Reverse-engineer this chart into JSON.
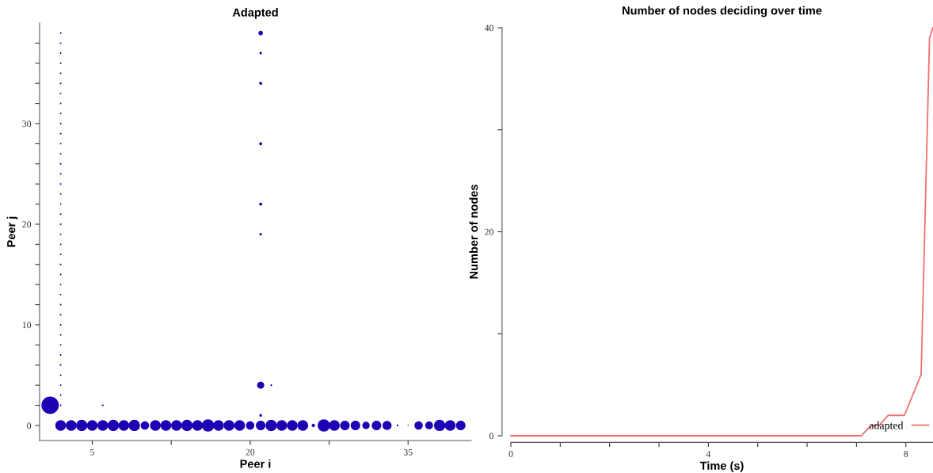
{
  "chart_data": [
    {
      "type": "bubble",
      "title": "Adapted",
      "xlabel": "Peer i",
      "ylabel": "Peer j",
      "xlim": [
        0,
        41
      ],
      "ylim": [
        -1.5,
        40
      ],
      "xticks": [
        5,
        {
          "value": 12.5,
          "label": null
        },
        20,
        {
          "value": 27.5,
          "label": null
        },
        35
      ],
      "yticks": [
        0,
        {
          "value": 2,
          "label": null
        },
        {
          "value": 4,
          "label": null
        },
        {
          "value": 6,
          "label": null
        },
        {
          "value": 8,
          "label": null
        },
        10,
        {
          "value": 12,
          "label": null
        },
        {
          "value": 14,
          "label": null
        },
        {
          "value": 16,
          "label": null
        },
        {
          "value": 18,
          "label": null
        },
        20,
        {
          "value": 22,
          "label": null
        },
        {
          "value": 24,
          "label": null
        },
        {
          "value": 26,
          "label": null
        },
        {
          "value": 28,
          "label": null
        },
        30,
        {
          "value": 32,
          "label": null
        },
        {
          "value": 34,
          "label": null
        },
        {
          "value": 36,
          "label": null
        },
        {
          "value": 38,
          "label": null
        }
      ],
      "grid": false,
      "legend": false,
      "series": [
        {
          "color": "#1c00b4",
          "x": [
            2,
            3,
            4,
            5,
            6,
            7,
            8,
            9,
            10,
            11,
            12,
            13,
            14,
            15,
            16,
            17,
            18,
            19,
            20,
            21,
            22,
            23,
            24,
            25,
            26,
            27,
            28,
            29,
            30,
            31,
            32,
            33,
            34,
            35,
            36,
            37,
            38,
            39,
            40,
            1,
            21,
            21,
            21,
            21,
            21,
            21,
            21,
            21,
            22,
            6,
            2,
            2,
            2,
            2,
            2,
            2,
            2,
            2,
            2,
            2,
            2,
            2,
            2,
            2,
            2,
            2,
            2,
            2,
            2,
            2,
            2,
            2,
            2,
            2,
            2,
            2,
            2,
            2,
            2,
            2,
            2,
            2,
            2,
            2,
            2,
            2,
            2,
            2
          ],
          "values": [
            0,
            0,
            0,
            0,
            0,
            0,
            0,
            0,
            0,
            0,
            0,
            0,
            0,
            0,
            0,
            0,
            0,
            0,
            0,
            0,
            0,
            0,
            0,
            0,
            0,
            0,
            0,
            0,
            0,
            0,
            0,
            0,
            0,
            0,
            0,
            0,
            0,
            0,
            0,
            2,
            1,
            4,
            19,
            22,
            28,
            34,
            37,
            39,
            4,
            2,
            2,
            3,
            4,
            5,
            6,
            7,
            8,
            9,
            10,
            11,
            12,
            13,
            14,
            15,
            16,
            17,
            18,
            19,
            20,
            21,
            22,
            23,
            24,
            25,
            26,
            27,
            28,
            29,
            30,
            31,
            32,
            33,
            34,
            35,
            36,
            37,
            38,
            39
          ],
          "sizes": [
            0.38,
            0.38,
            0.42,
            0.38,
            0.38,
            0.42,
            0.38,
            0.42,
            0.23,
            0.38,
            0.38,
            0.38,
            0.42,
            0.38,
            0.5,
            0.38,
            0.38,
            0.38,
            0.23,
            0.3,
            0.42,
            0.38,
            0.38,
            0.38,
            0.04,
            0.5,
            0.38,
            0.3,
            0.3,
            0.18,
            0.3,
            0.27,
            0.01,
            0.004,
            0.23,
            0.2,
            0.42,
            0.38,
            0.3,
            1,
            0.025,
            0.17,
            0.02,
            0.03,
            0.03,
            0.03,
            0.02,
            0.07,
            0.01,
            0.01,
            0.008,
            0.008,
            0.008,
            0.008,
            0.008,
            0.008,
            0.008,
            0.008,
            0.008,
            0.008,
            0.008,
            0.008,
            0.008,
            0.008,
            0.008,
            0.008,
            0.008,
            0.008,
            0.008,
            0.008,
            0.008,
            0.008,
            0.008,
            0.008,
            0.008,
            0.008,
            0.008,
            0.008,
            0.008,
            0.008,
            0.008,
            0.008,
            0.008,
            0.008,
            0.008,
            0.008,
            0.008,
            0.008
          ]
        }
      ]
    },
    {
      "type": "line",
      "title": "Number of nodes deciding over time",
      "xlabel": "Time (s)",
      "ylabel": "Number of nodes",
      "xlim": [
        0,
        8.55
      ],
      "ylim": [
        0,
        40
      ],
      "xticks": [
        0,
        {
          "value": 1,
          "label": null
        },
        {
          "value": 2,
          "label": null
        },
        {
          "value": 3,
          "label": null
        },
        4,
        {
          "value": 5,
          "label": null
        },
        {
          "value": 6,
          "label": null
        },
        {
          "value": 7,
          "label": null
        },
        8
      ],
      "yticks": [
        0,
        {
          "value": 10,
          "label": null
        },
        20,
        {
          "value": 30,
          "label": null
        },
        40
      ],
      "grid": false,
      "legend": "bottom right",
      "marker": "none",
      "line_style": "solid",
      "series": [
        {
          "name": "adapted",
          "color": "#f07070",
          "x": [
            0,
            7.1,
            7.29,
            7.46,
            7.64,
            7.97,
            8.31,
            8.48,
            8.55
          ],
          "values": [
            0,
            0,
            1,
            1,
            2,
            2,
            6,
            39,
            40
          ]
        }
      ]
    }
  ]
}
